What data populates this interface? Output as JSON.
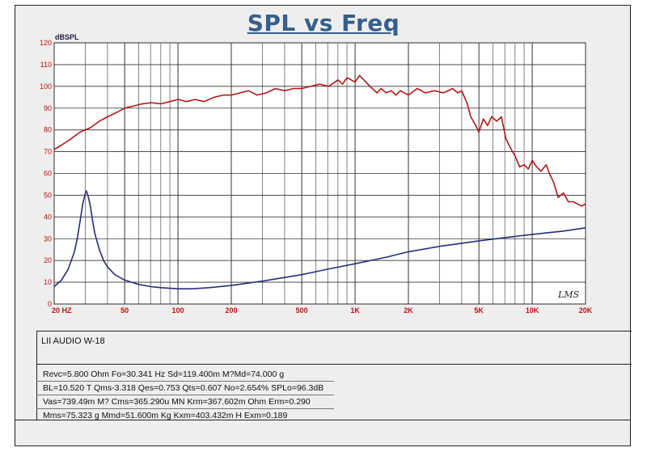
{
  "title": "SPL vs Freq",
  "chart_data": {
    "type": "line",
    "title": "SPL vs Freq",
    "ylabel": "dBSPL",
    "xscale": "log",
    "xlim": [
      20,
      20000
    ],
    "ylim": [
      0,
      120
    ],
    "grid": true,
    "y_ticks": [
      "0",
      "10",
      "20",
      "30",
      "40",
      "50",
      "60",
      "70",
      "80",
      "90",
      "100",
      "110",
      "120"
    ],
    "x_ticks": [
      {
        "value": 20,
        "label": "20  HZ"
      },
      {
        "value": 50,
        "label": "50"
      },
      {
        "value": 100,
        "label": "100"
      },
      {
        "value": 200,
        "label": "200"
      },
      {
        "value": 500,
        "label": "500"
      },
      {
        "value": 1000,
        "label": "1K"
      },
      {
        "value": 2000,
        "label": "2K"
      },
      {
        "value": 5000,
        "label": "5K"
      },
      {
        "value": 10000,
        "label": "10K"
      },
      {
        "value": 20000,
        "label": "20K"
      }
    ],
    "series": [
      {
        "color": "#b01818",
        "x": [
          20,
          22,
          25,
          28,
          32,
          36,
          40,
          45,
          50,
          56,
          63,
          71,
          80,
          90,
          100,
          112,
          125,
          140,
          160,
          180,
          200,
          224,
          250,
          280,
          315,
          355,
          400,
          450,
          500,
          560,
          630,
          710,
          800,
          850,
          900,
          950,
          1000,
          1060,
          1120,
          1180,
          1250,
          1330,
          1400,
          1500,
          1600,
          1700,
          1800,
          2000,
          2240,
          2500,
          2800,
          3150,
          3550,
          3800,
          4000,
          4300,
          4500,
          4800,
          5000,
          5300,
          5600,
          5900,
          6300,
          6700,
          7100,
          7500,
          8000,
          8500,
          9000,
          9500,
          10000,
          10600,
          11200,
          12000,
          12500,
          13200,
          14000,
          15000,
          16000,
          17000,
          18000,
          19000,
          20000
        ],
        "values": [
          71,
          73,
          76,
          79,
          81,
          84,
          86,
          88,
          90,
          91,
          92,
          92.5,
          92,
          93,
          94,
          93,
          94,
          93,
          95,
          96,
          96,
          97,
          98,
          96,
          97,
          99,
          98,
          99,
          99,
          100,
          101,
          100,
          103,
          101,
          104,
          103,
          102,
          105,
          103,
          101,
          99,
          97,
          99,
          97,
          98,
          96,
          98,
          96,
          99,
          97,
          98,
          97,
          99,
          97,
          98,
          92,
          86,
          82,
          79,
          85,
          82,
          86,
          84,
          86,
          76,
          72,
          68,
          63,
          64,
          62,
          66,
          63,
          61,
          64,
          60,
          56,
          49,
          51,
          47,
          47,
          46,
          45,
          46
        ]
      },
      {
        "color": "#2a2d7a",
        "x": [
          20,
          22,
          24,
          26,
          27,
          28,
          29,
          30,
          30.34,
          31,
          32,
          33,
          34,
          36,
          38,
          40,
          44,
          50,
          60,
          70,
          80,
          100,
          120,
          150,
          200,
          300,
          500,
          700,
          1000,
          1500,
          2000,
          3000,
          5000,
          7000,
          10000,
          15000,
          20000
        ],
        "values": [
          8,
          11,
          16,
          24,
          30,
          38,
          46,
          51,
          52,
          50,
          45,
          38,
          32,
          25,
          20,
          17,
          13.5,
          11,
          9,
          8,
          7.5,
          7,
          7,
          7.5,
          8.5,
          10.5,
          13.5,
          16,
          18.5,
          21.5,
          24,
          26.5,
          29,
          30.5,
          32,
          33.5,
          35
        ]
      }
    ],
    "logo": "LMS"
  },
  "model": {
    "label": "LII AUDIO W-18"
  },
  "params": {
    "row1": "Revc=5.800 Ohm  Fo=30.341 Hz  Sd=119.400m M?Md=74.000 g",
    "row2": "BL=10.520 T Qms-3.318  Qes=0.753  Qts=0.607  No=2.654% SPLo=96.3dB",
    "row3": "Vas=739.49m M? Cms=365.290u MN Krm=367.602m Ohm Erm=0.290",
    "row4": "Mms=75.323 g  Mmd=51.600m Kg  Kxm=403.432m H  Exm=0.189"
  }
}
